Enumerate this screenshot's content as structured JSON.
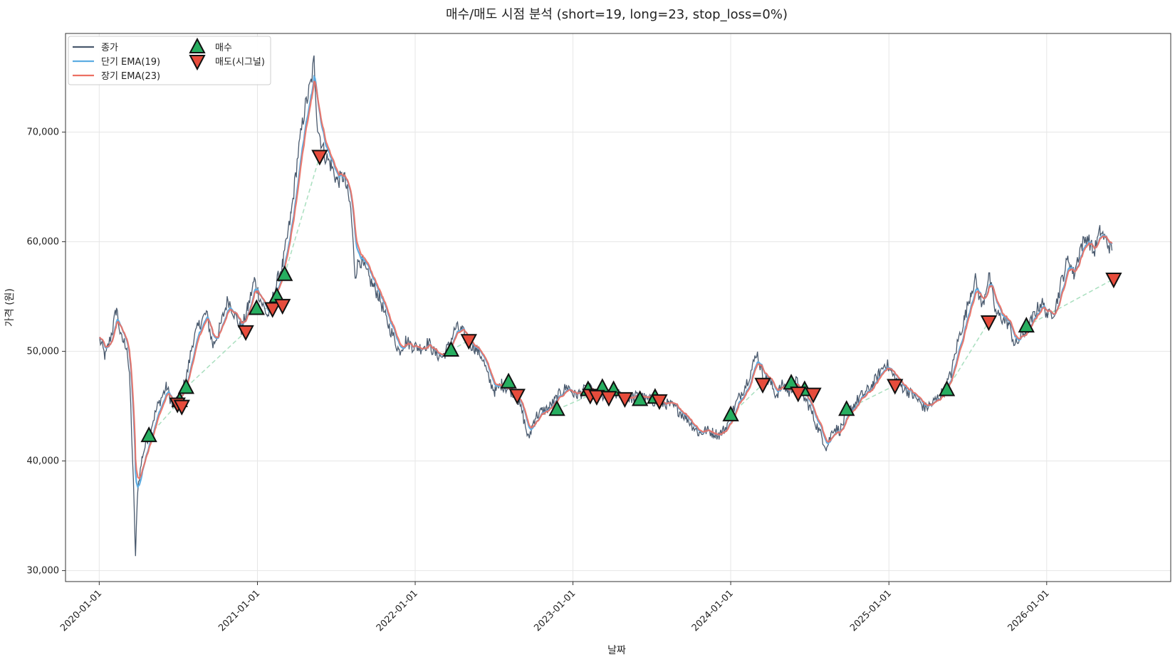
{
  "chart_data": {
    "type": "line",
    "title": "매수/매도 시점 분석 (short=19, long=23, stop_loss=0%)",
    "xlabel": "날짜",
    "ylabel": "가격 (원)",
    "xlim": [
      "2019-10-15",
      "2026-10-15"
    ],
    "ylim": [
      29000,
      79000
    ],
    "y_ticks": [
      30000,
      40000,
      50000,
      60000,
      70000
    ],
    "y_tick_labels": [
      "30,000",
      "40,000",
      "50,000",
      "60,000",
      "70,000"
    ],
    "x_ticks": [
      "2020-01-01",
      "2021-01-01",
      "2022-01-01",
      "2023-01-01",
      "2024-01-01",
      "2025-01-01",
      "2026-01-01"
    ],
    "grid": true,
    "legend_position": "top-left",
    "legend": [
      {
        "label": "종가",
        "kind": "line",
        "color": "#4a5a6e"
      },
      {
        "label": "단기 EMA(19)",
        "kind": "line",
        "color": "#5dade2"
      },
      {
        "label": "장기 EMA(23)",
        "kind": "line",
        "color": "#ec7063"
      },
      {
        "label": "매수",
        "kind": "marker-up",
        "color": "#27ae60"
      },
      {
        "label": "매도(시그널)",
        "kind": "marker-down",
        "color": "#e74c3c"
      }
    ],
    "colors": {
      "close": "#4a5a6e",
      "ema_short": "#5dade2",
      "ema_long": "#ec7063",
      "buy": "#27ae60",
      "sell": "#e74c3c",
      "trade_link": "#a9dfbf"
    },
    "close_anchors": [
      [
        "2020-01-02",
        51100
      ],
      [
        "2020-01-15",
        49500
      ],
      [
        "2020-02-01",
        52000
      ],
      [
        "2020-02-10",
        54000
      ],
      [
        "2020-02-20",
        51200
      ],
      [
        "2020-03-05",
        50500
      ],
      [
        "2020-03-12",
        47000
      ],
      [
        "2020-03-20",
        38000
      ],
      [
        "2020-03-25",
        31300
      ],
      [
        "2020-03-30",
        37500
      ],
      [
        "2020-04-10",
        40500
      ],
      [
        "2020-04-25",
        42500
      ],
      [
        "2020-05-15",
        45000
      ],
      [
        "2020-06-05",
        46800
      ],
      [
        "2020-06-20",
        44800
      ],
      [
        "2020-07-05",
        45800
      ],
      [
        "2020-07-20",
        47500
      ],
      [
        "2020-08-05",
        51000
      ],
      [
        "2020-08-20",
        52500
      ],
      [
        "2020-09-05",
        53500
      ],
      [
        "2020-09-20",
        50500
      ],
      [
        "2020-10-05",
        52000
      ],
      [
        "2020-10-25",
        54800
      ],
      [
        "2020-11-10",
        53300
      ],
      [
        "2020-11-25",
        52000
      ],
      [
        "2020-12-10",
        54000
      ],
      [
        "2020-12-25",
        56500
      ],
      [
        "2021-01-10",
        54500
      ],
      [
        "2021-01-25",
        53200
      ],
      [
        "2021-02-10",
        55500
      ],
      [
        "2021-02-20",
        57000
      ],
      [
        "2021-03-01",
        58000
      ],
      [
        "2021-03-20",
        62500
      ],
      [
        "2021-04-05",
        68000
      ],
      [
        "2021-04-20",
        72000
      ],
      [
        "2021-05-05",
        74500
      ],
      [
        "2021-05-12",
        76500
      ],
      [
        "2021-05-20",
        70500
      ],
      [
        "2021-06-05",
        68000
      ],
      [
        "2021-06-20",
        67000
      ],
      [
        "2021-07-05",
        65500
      ],
      [
        "2021-07-20",
        66000
      ],
      [
        "2021-08-05",
        63000
      ],
      [
        "2021-08-15",
        57000
      ],
      [
        "2021-08-25",
        58500
      ],
      [
        "2021-09-10",
        57200
      ],
      [
        "2021-09-25",
        56000
      ],
      [
        "2021-10-10",
        55000
      ],
      [
        "2021-10-25",
        53000
      ],
      [
        "2021-11-10",
        51500
      ],
      [
        "2021-11-25",
        50000
      ],
      [
        "2021-12-10",
        51000
      ],
      [
        "2021-12-25",
        50500
      ],
      [
        "2022-01-15",
        50300
      ],
      [
        "2022-02-01",
        50800
      ],
      [
        "2022-02-15",
        49800
      ],
      [
        "2022-03-05",
        49500
      ],
      [
        "2022-03-20",
        50500
      ],
      [
        "2022-04-05",
        52200
      ],
      [
        "2022-04-20",
        51800
      ],
      [
        "2022-05-05",
        50800
      ],
      [
        "2022-05-20",
        50300
      ],
      [
        "2022-06-05",
        49500
      ],
      [
        "2022-06-20",
        47500
      ],
      [
        "2022-07-05",
        46300
      ],
      [
        "2022-07-20",
        47000
      ],
      [
        "2022-08-05",
        46500
      ],
      [
        "2022-08-20",
        46200
      ],
      [
        "2022-09-05",
        44500
      ],
      [
        "2022-09-20",
        42000
      ],
      [
        "2022-10-05",
        44000
      ],
      [
        "2022-10-20",
        44500
      ],
      [
        "2022-11-05",
        44800
      ],
      [
        "2022-11-20",
        45500
      ],
      [
        "2022-12-05",
        46300
      ],
      [
        "2022-12-20",
        46800
      ],
      [
        "2023-01-05",
        46000
      ],
      [
        "2023-01-20",
        46200
      ],
      [
        "2023-02-05",
        46700
      ],
      [
        "2023-02-20",
        46000
      ],
      [
        "2023-03-05",
        45800
      ],
      [
        "2023-03-20",
        46000
      ],
      [
        "2023-04-05",
        46200
      ],
      [
        "2023-04-20",
        46000
      ],
      [
        "2023-05-05",
        45700
      ],
      [
        "2023-05-20",
        45800
      ],
      [
        "2023-06-05",
        46000
      ],
      [
        "2023-06-20",
        45600
      ],
      [
        "2023-07-05",
        45500
      ],
      [
        "2023-07-20",
        45300
      ],
      [
        "2023-08-05",
        45200
      ],
      [
        "2023-08-20",
        45000
      ],
      [
        "2023-09-05",
        44500
      ],
      [
        "2023-09-20",
        44000
      ],
      [
        "2023-10-05",
        43200
      ],
      [
        "2023-10-20",
        42500
      ],
      [
        "2023-11-05",
        42800
      ],
      [
        "2023-11-20",
        42600
      ],
      [
        "2023-12-05",
        42400
      ],
      [
        "2023-12-20",
        43000
      ],
      [
        "2024-01-05",
        44500
      ],
      [
        "2024-01-20",
        45800
      ],
      [
        "2024-02-05",
        47000
      ],
      [
        "2024-02-20",
        48500
      ],
      [
        "2024-03-01",
        50000
      ],
      [
        "2024-03-15",
        47800
      ],
      [
        "2024-04-01",
        47200
      ],
      [
        "2024-04-15",
        46000
      ],
      [
        "2024-05-01",
        47000
      ],
      [
        "2024-05-15",
        46200
      ],
      [
        "2024-06-01",
        47300
      ],
      [
        "2024-06-15",
        46000
      ],
      [
        "2024-07-01",
        45000
      ],
      [
        "2024-07-15",
        43500
      ],
      [
        "2024-08-01",
        42000
      ],
      [
        "2024-08-10",
        41200
      ],
      [
        "2024-08-25",
        43000
      ],
      [
        "2024-09-10",
        42800
      ],
      [
        "2024-09-25",
        44200
      ],
      [
        "2024-10-10",
        45000
      ],
      [
        "2024-10-25",
        45800
      ],
      [
        "2024-11-10",
        46300
      ],
      [
        "2024-11-25",
        47000
      ],
      [
        "2024-12-10",
        48000
      ],
      [
        "2024-12-25",
        49000
      ],
      [
        "2025-01-10",
        47800
      ],
      [
        "2025-01-25",
        47000
      ],
      [
        "2025-02-10",
        46500
      ],
      [
        "2025-02-25",
        46000
      ],
      [
        "2025-03-10",
        45500
      ],
      [
        "2025-03-25",
        44800
      ],
      [
        "2025-04-10",
        45200
      ],
      [
        "2025-04-25",
        45800
      ],
      [
        "2025-05-10",
        46500
      ],
      [
        "2025-05-25",
        48000
      ],
      [
        "2025-06-10",
        51000
      ],
      [
        "2025-06-25",
        53000
      ],
      [
        "2025-07-10",
        55500
      ],
      [
        "2025-07-20",
        56500
      ],
      [
        "2025-08-05",
        54000
      ],
      [
        "2025-08-20",
        57000
      ],
      [
        "2025-09-05",
        53500
      ],
      [
        "2025-09-20",
        53000
      ],
      [
        "2025-10-05",
        52500
      ],
      [
        "2025-10-20",
        50500
      ],
      [
        "2025-11-05",
        51500
      ],
      [
        "2025-11-20",
        52200
      ],
      [
        "2025-12-05",
        53500
      ],
      [
        "2025-12-20",
        54500
      ],
      [
        "2026-01-05",
        53200
      ],
      [
        "2026-01-20",
        53800
      ],
      [
        "2026-02-05",
        56500
      ],
      [
        "2026-02-20",
        58500
      ],
      [
        "2026-03-05",
        57000
      ],
      [
        "2026-03-20",
        59500
      ],
      [
        "2026-04-05",
        60500
      ],
      [
        "2026-04-20",
        59000
      ],
      [
        "2026-05-05",
        61000
      ],
      [
        "2026-05-20",
        60000
      ],
      [
        "2026-06-01",
        59200
      ]
    ],
    "buy_markers": [
      [
        "2020-04-25",
        42300
      ],
      [
        "2020-07-05",
        45500
      ],
      [
        "2020-07-20",
        46700
      ],
      [
        "2020-12-30",
        53900
      ],
      [
        "2021-02-15",
        55000
      ],
      [
        "2021-03-05",
        57000
      ],
      [
        "2022-03-25",
        50100
      ],
      [
        "2022-08-05",
        47200
      ],
      [
        "2022-11-25",
        44700
      ],
      [
        "2023-02-05",
        46500
      ],
      [
        "2023-03-10",
        46700
      ],
      [
        "2023-04-05",
        46500
      ],
      [
        "2023-06-05",
        45600
      ],
      [
        "2023-07-10",
        45800
      ],
      [
        "2024-01-01",
        44200
      ],
      [
        "2024-05-20",
        47100
      ],
      [
        "2024-06-20",
        46500
      ],
      [
        "2024-09-25",
        44700
      ],
      [
        "2025-05-15",
        46500
      ],
      [
        "2025-11-15",
        52300
      ]
    ],
    "sell_markers": [
      [
        "2020-06-30",
        45200
      ],
      [
        "2020-07-10",
        45000
      ],
      [
        "2020-12-05",
        51800
      ],
      [
        "2021-02-05",
        53900
      ],
      [
        "2021-02-28",
        54200
      ],
      [
        "2021-05-25",
        67800
      ],
      [
        "2022-05-05",
        51000
      ],
      [
        "2022-08-25",
        46000
      ],
      [
        "2023-02-10",
        46000
      ],
      [
        "2023-02-25",
        45900
      ],
      [
        "2023-03-25",
        45800
      ],
      [
        "2023-05-01",
        45700
      ],
      [
        "2023-07-20",
        45500
      ],
      [
        "2024-03-15",
        47000
      ],
      [
        "2024-06-05",
        46200
      ],
      [
        "2024-07-10",
        46100
      ],
      [
        "2025-01-15",
        46900
      ],
      [
        "2025-08-20",
        52700
      ],
      [
        "2026-06-05",
        56600
      ]
    ]
  }
}
